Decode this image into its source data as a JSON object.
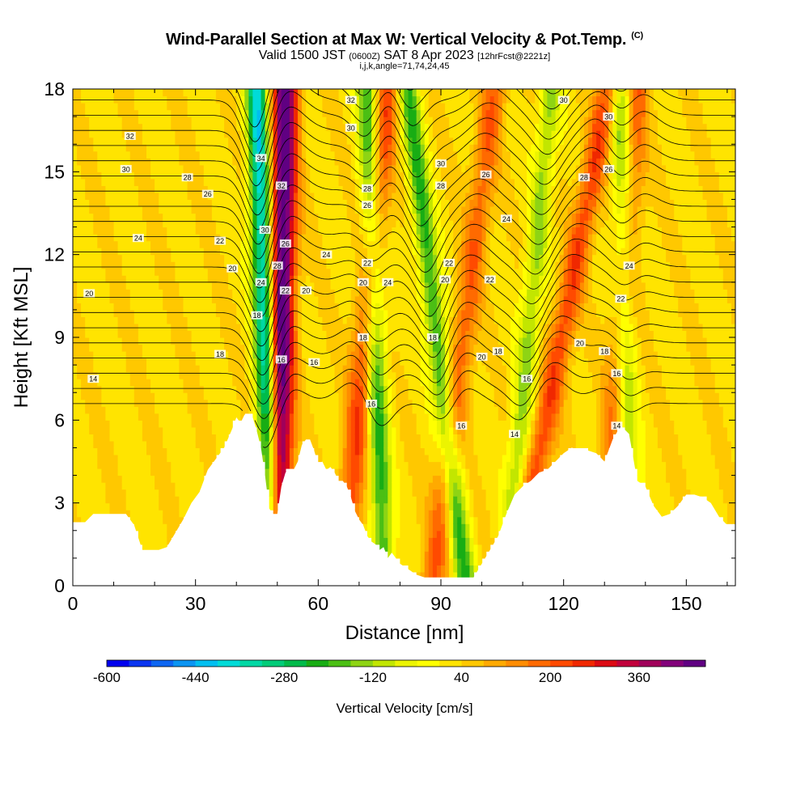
{
  "header": {
    "title_main": "Wind-Parallel Section at Max W: Vertical Velocity & Pot.Temp.",
    "title_copyright": "(C)",
    "valid_prefix": "Valid 1500 JST",
    "valid_utc": "(0600Z)",
    "valid_date": "SAT 8 Apr 2023",
    "forecast_info": "[12hrFcst@2221z]",
    "indices": "i,j,k,angle=71,74,24,45"
  },
  "chart_data": {
    "type": "heatmap",
    "xlabel": "Distance [nm]",
    "ylabel": "Height [Kft MSL]",
    "xlim": [
      0,
      162
    ],
    "ylim": [
      0,
      18
    ],
    "x_ticks": [
      0,
      30,
      60,
      90,
      120,
      150
    ],
    "y_ticks": [
      0,
      3,
      6,
      9,
      12,
      15,
      18
    ],
    "colorbar": {
      "label": "Vertical Velocity [cm/s]",
      "min": -600,
      "max": 480,
      "step": 40,
      "tick_labels": [
        -600,
        -440,
        -280,
        -120,
        40,
        200,
        360
      ],
      "colors": [
        "#0000ee",
        "#0a35f0",
        "#0e66f2",
        "#0b94f2",
        "#00bff0",
        "#00dbd8",
        "#00d8a4",
        "#00cc78",
        "#00bb4a",
        "#18ad14",
        "#4bbf14",
        "#8ed414",
        "#c2e600",
        "#ecf400",
        "#ffff00",
        "#ffe400",
        "#ffc800",
        "#ffaa00",
        "#ff8c00",
        "#ff6a00",
        "#ff4a00",
        "#f02800",
        "#dc0a14",
        "#c2003c",
        "#a0005a",
        "#82007a",
        "#600082"
      ]
    },
    "terrain": {
      "x": [
        0,
        3,
        5,
        7,
        10,
        13,
        15,
        17,
        19,
        21,
        23,
        25,
        27,
        29,
        31,
        33,
        35,
        37,
        39,
        40,
        41,
        42,
        43,
        44,
        45,
        46,
        47,
        48,
        49,
        50,
        51,
        52,
        53,
        54,
        55,
        56,
        57,
        58,
        59,
        60,
        61,
        62,
        63,
        64,
        65,
        66,
        67,
        68,
        69,
        70,
        71,
        72,
        73,
        74,
        75,
        76,
        77,
        78,
        80,
        82,
        84,
        86,
        88,
        90,
        92,
        94,
        96,
        98,
        100,
        102,
        104,
        106,
        108,
        110,
        112,
        114,
        116,
        118,
        120,
        122,
        124,
        126,
        128,
        130,
        132,
        134,
        136,
        138,
        140,
        142,
        144,
        146,
        148,
        150,
        152,
        154,
        156,
        158,
        160,
        162
      ],
      "height_kft": [
        2.3,
        2.3,
        2.6,
        2.6,
        2.6,
        2.6,
        2.2,
        1.3,
        1.3,
        1.3,
        1.4,
        1.9,
        2.4,
        3.0,
        3.4,
        4.2,
        4.6,
        5.0,
        5.7,
        6.1,
        5.9,
        6.2,
        6.2,
        6.1,
        5.6,
        5.0,
        4.0,
        2.8,
        2.6,
        2.6,
        3.6,
        4.1,
        4.2,
        4.2,
        4.5,
        5.1,
        5.3,
        5.3,
        4.9,
        4.4,
        4.5,
        4.2,
        4.3,
        4.1,
        3.8,
        3.8,
        3.6,
        3.2,
        2.7,
        2.4,
        2.2,
        1.8,
        1.6,
        1.5,
        1.3,
        1.4,
        1.0,
        1.2,
        0.8,
        0.6,
        0.4,
        0.3,
        0.3,
        0.3,
        0.3,
        0.3,
        0.3,
        0.3,
        0.8,
        1.3,
        1.8,
        2.6,
        3.3,
        3.6,
        3.8,
        4.1,
        4.2,
        4.5,
        4.8,
        5.0,
        4.9,
        4.9,
        4.8,
        4.5,
        5.3,
        5.8,
        5.5,
        3.8,
        3.6,
        2.9,
        2.5,
        2.6,
        2.9,
        3.3,
        3.3,
        3.2,
        3.0,
        2.5,
        2.2,
        2.2
      ]
    },
    "updraft_bands": [
      {
        "x_top_nm": 52,
        "x_bottom_nm": 50,
        "peak_cm_s": 460
      },
      {
        "x_top_nm": 77,
        "x_bottom_nm": 66,
        "peak_cm_s": 200
      },
      {
        "x_top_nm": 103,
        "x_bottom_nm": 88,
        "peak_cm_s": 160
      },
      {
        "x_top_nm": 131,
        "x_bottom_nm": 108,
        "peak_cm_s": 200
      },
      {
        "x_top_nm": 138,
        "x_bottom_nm": 130,
        "peak_cm_s": 160
      }
    ],
    "downdraft_bands": [
      {
        "x_top_nm": 45,
        "x_bottom_nm": 49,
        "peak_cm_s": -420
      },
      {
        "x_top_nm": 72,
        "x_bottom_nm": 76,
        "peak_cm_s": -240
      },
      {
        "x_top_nm": 82,
        "x_bottom_nm": 96,
        "peak_cm_s": -240
      },
      {
        "x_top_nm": 117,
        "x_bottom_nm": 106,
        "peak_cm_s": -160
      },
      {
        "x_top_nm": 134,
        "x_bottom_nm": 136,
        "peak_cm_s": -200
      }
    ],
    "contour_labels": [
      {
        "x": 14,
        "y": 16.3,
        "text": "32"
      },
      {
        "x": 13,
        "y": 15.1,
        "text": "30"
      },
      {
        "x": 28,
        "y": 14.8,
        "text": "28"
      },
      {
        "x": 33,
        "y": 14.2,
        "text": "26"
      },
      {
        "x": 16,
        "y": 12.6,
        "text": "24"
      },
      {
        "x": 36,
        "y": 12.5,
        "text": "22"
      },
      {
        "x": 39,
        "y": 11.5,
        "text": "20"
      },
      {
        "x": 4,
        "y": 10.6,
        "text": "20"
      },
      {
        "x": 36,
        "y": 8.4,
        "text": "18"
      },
      {
        "x": 5,
        "y": 7.5,
        "text": "14"
      },
      {
        "x": 46,
        "y": 15.5,
        "text": "34"
      },
      {
        "x": 51,
        "y": 14.5,
        "text": "32"
      },
      {
        "x": 47,
        "y": 12.9,
        "text": "30"
      },
      {
        "x": 52,
        "y": 12.4,
        "text": "26"
      },
      {
        "x": 50,
        "y": 11.6,
        "text": "28"
      },
      {
        "x": 46,
        "y": 11.0,
        "text": "24"
      },
      {
        "x": 52,
        "y": 10.7,
        "text": "22"
      },
      {
        "x": 45,
        "y": 9.8,
        "text": "18"
      },
      {
        "x": 51,
        "y": 8.2,
        "text": "16"
      },
      {
        "x": 68,
        "y": 17.6,
        "text": "32"
      },
      {
        "x": 68,
        "y": 16.6,
        "text": "30"
      },
      {
        "x": 72,
        "y": 14.4,
        "text": "28"
      },
      {
        "x": 72,
        "y": 13.8,
        "text": "26"
      },
      {
        "x": 62,
        "y": 12.0,
        "text": "24"
      },
      {
        "x": 72,
        "y": 11.7,
        "text": "22"
      },
      {
        "x": 57,
        "y": 10.7,
        "text": "20"
      },
      {
        "x": 71,
        "y": 11.0,
        "text": "20"
      },
      {
        "x": 77,
        "y": 11.0,
        "text": "24"
      },
      {
        "x": 71,
        "y": 9.0,
        "text": "18"
      },
      {
        "x": 59,
        "y": 8.1,
        "text": "16"
      },
      {
        "x": 73,
        "y": 6.6,
        "text": "16"
      },
      {
        "x": 90,
        "y": 15.3,
        "text": "30"
      },
      {
        "x": 90,
        "y": 14.5,
        "text": "28"
      },
      {
        "x": 92,
        "y": 11.7,
        "text": "22"
      },
      {
        "x": 91,
        "y": 11.1,
        "text": "20"
      },
      {
        "x": 88,
        "y": 9.0,
        "text": "18"
      },
      {
        "x": 95,
        "y": 5.8,
        "text": "16"
      },
      {
        "x": 101,
        "y": 14.9,
        "text": "26"
      },
      {
        "x": 106,
        "y": 13.3,
        "text": "24"
      },
      {
        "x": 102,
        "y": 11.1,
        "text": "22"
      },
      {
        "x": 100,
        "y": 8.3,
        "text": "20"
      },
      {
        "x": 104,
        "y": 8.5,
        "text": "18"
      },
      {
        "x": 111,
        "y": 7.5,
        "text": "16"
      },
      {
        "x": 108,
        "y": 5.5,
        "text": "14"
      },
      {
        "x": 120,
        "y": 17.6,
        "text": "30"
      },
      {
        "x": 125,
        "y": 14.8,
        "text": "28"
      },
      {
        "x": 131,
        "y": 15.1,
        "text": "26"
      },
      {
        "x": 131,
        "y": 17.0,
        "text": "30"
      },
      {
        "x": 136,
        "y": 11.6,
        "text": "24"
      },
      {
        "x": 134,
        "y": 10.4,
        "text": "22"
      },
      {
        "x": 124,
        "y": 8.8,
        "text": "20"
      },
      {
        "x": 130,
        "y": 8.5,
        "text": "18"
      },
      {
        "x": 133,
        "y": 7.7,
        "text": "16"
      },
      {
        "x": 133,
        "y": 5.8,
        "text": "14"
      }
    ]
  }
}
